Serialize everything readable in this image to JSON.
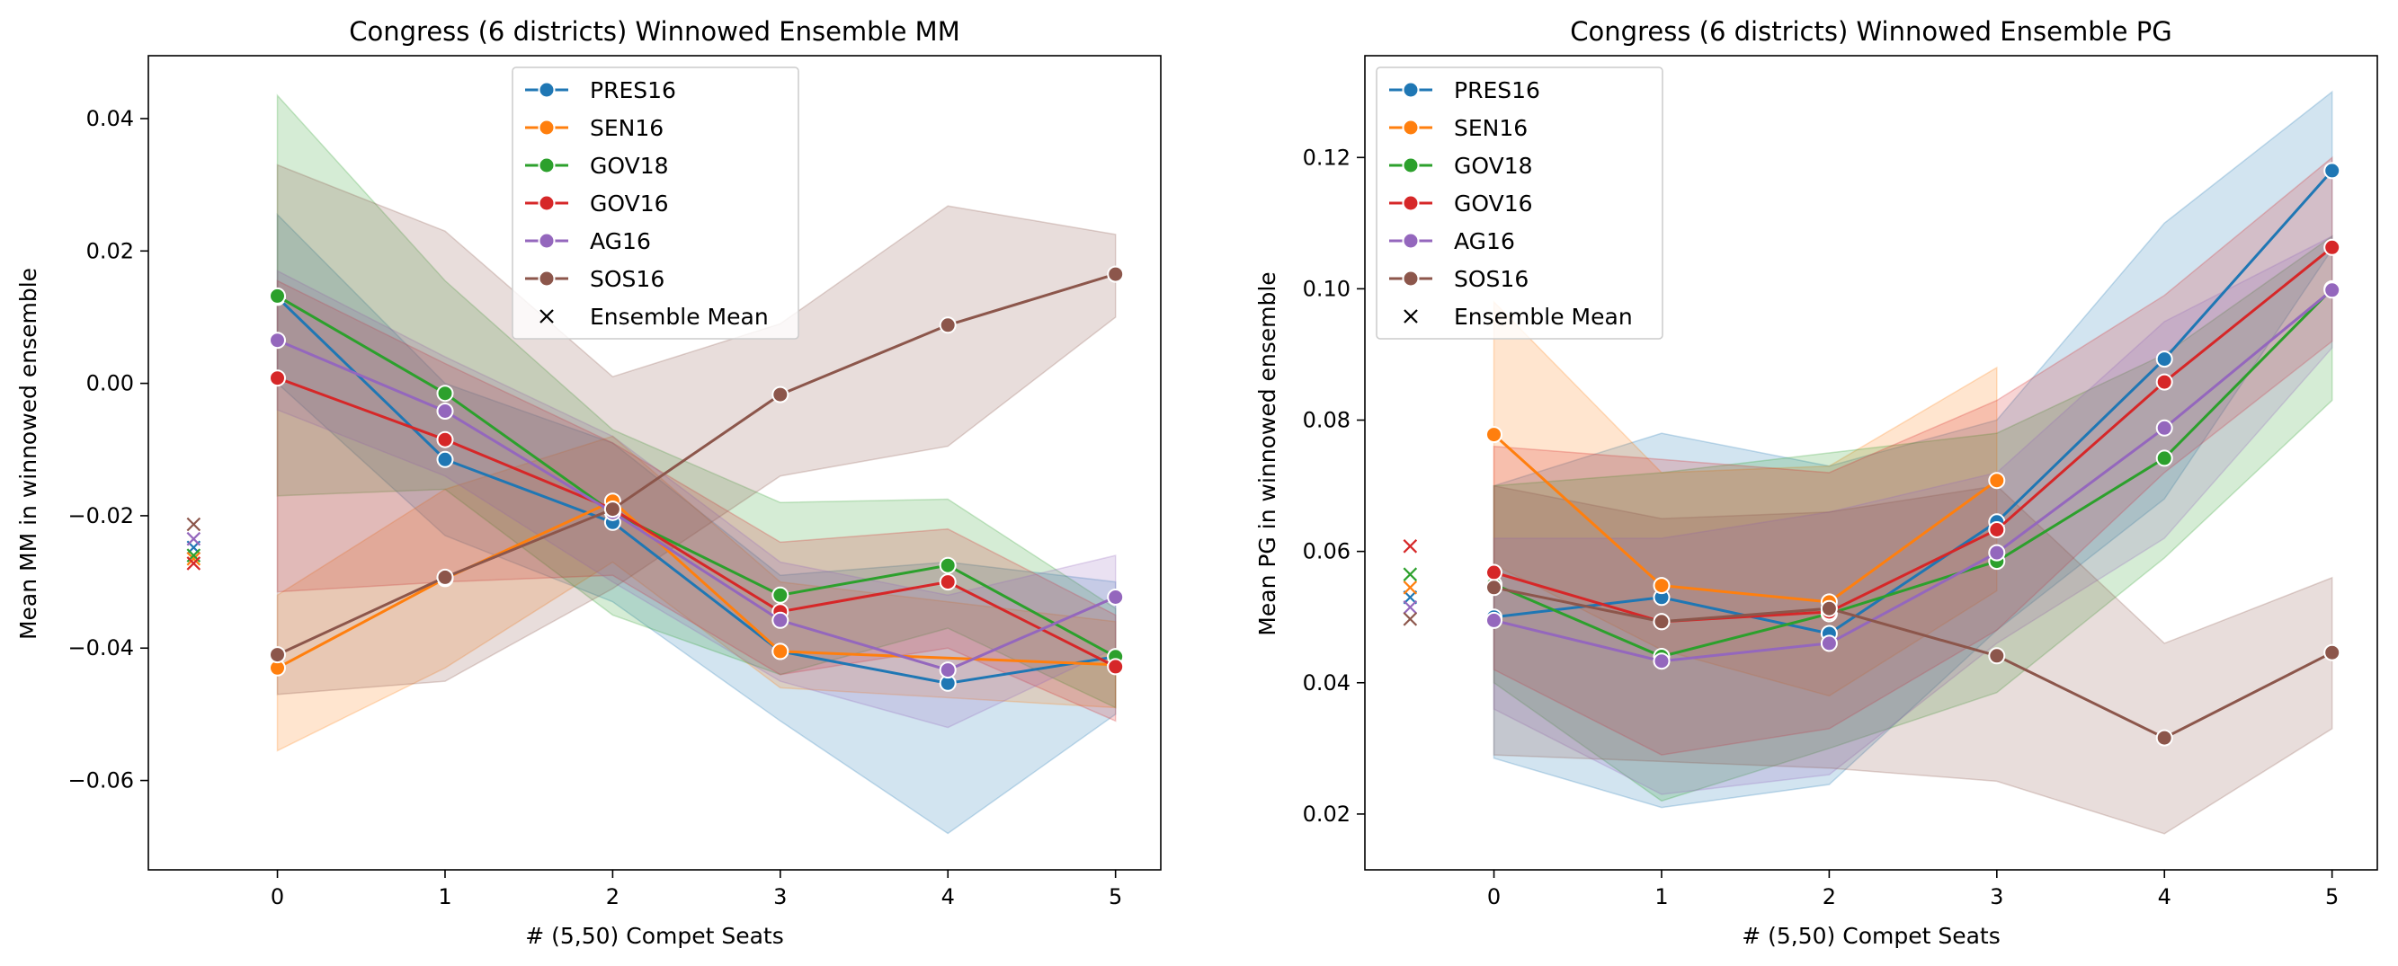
{
  "chart_data": [
    {
      "type": "line",
      "title": "Congress (6 districts) Winnowed Ensemble MM",
      "xlabel": "# (5,50) Compet Seats",
      "ylabel": "Mean MM in winnowed ensemble",
      "xlim": [
        -0.77,
        5.27
      ],
      "ylim": [
        -0.0735,
        0.0495
      ],
      "x": [
        0,
        1,
        2,
        3,
        4,
        5
      ],
      "x_ticks": [
        "0",
        "1",
        "2",
        "3",
        "4",
        "5"
      ],
      "y_ticks": [
        0.04,
        0.02,
        0.0,
        -0.02,
        -0.04,
        -0.06
      ],
      "y_tick_labels": [
        "0.04",
        "0.02",
        "0.00",
        "−0.02",
        "−0.04",
        "−0.06"
      ],
      "grid": false,
      "legend_position": "upper center",
      "series": [
        {
          "name": "PRES16",
          "color": "#1f77b4",
          "values": [
            0.013,
            -0.0115,
            -0.021,
            -0.0405,
            -0.0453,
            -0.0413
          ],
          "band_upper": [
            0.0255,
            0.0,
            -0.009,
            -0.029,
            -0.027,
            -0.03
          ],
          "band_lower": [
            0.0,
            -0.023,
            -0.033,
            -0.051,
            -0.068,
            -0.05
          ],
          "ensemble_mean": -0.0248
        },
        {
          "name": "SEN16",
          "color": "#ff7f0e",
          "values": [
            -0.043,
            -0.0295,
            -0.0178,
            -0.0405,
            null,
            -0.0425
          ],
          "band_upper": [
            -0.032,
            -0.016,
            -0.008,
            -0.03,
            null,
            -0.036
          ],
          "band_lower": [
            -0.0555,
            -0.043,
            -0.027,
            -0.046,
            null,
            -0.049
          ],
          "ensemble_mean": -0.0265
        },
        {
          "name": "GOV18",
          "color": "#2ca02c",
          "values": [
            0.0132,
            -0.0015,
            -0.0195,
            -0.032,
            -0.0275,
            -0.0413
          ],
          "band_upper": [
            0.0435,
            0.0155,
            -0.007,
            -0.018,
            -0.0175,
            -0.034
          ],
          "band_lower": [
            -0.017,
            -0.016,
            -0.035,
            -0.044,
            -0.037,
            -0.049
          ],
          "ensemble_mean": -0.026
        },
        {
          "name": "GOV16",
          "color": "#d62728",
          "values": [
            0.0008,
            -0.0085,
            -0.019,
            -0.0345,
            -0.03,
            -0.0428
          ],
          "band_upper": [
            0.0155,
            0.003,
            -0.009,
            -0.024,
            -0.022,
            -0.035
          ],
          "band_lower": [
            -0.0315,
            -0.03,
            -0.029,
            -0.044,
            -0.04,
            -0.051
          ],
          "ensemble_mean": -0.0272
        },
        {
          "name": "AG16",
          "color": "#9467bd",
          "values": [
            0.0065,
            -0.0042,
            -0.0195,
            -0.0358,
            -0.0433,
            -0.0323
          ],
          "band_upper": [
            0.017,
            0.004,
            -0.008,
            -0.027,
            -0.032,
            -0.026
          ],
          "band_lower": [
            -0.004,
            -0.014,
            -0.03,
            -0.045,
            -0.052,
            -0.04
          ],
          "ensemble_mean": -0.0235
        },
        {
          "name": "SOS16",
          "color": "#8c564b",
          "values": [
            -0.041,
            -0.0293,
            -0.019,
            -0.0017,
            0.0088,
            0.0165
          ],
          "band_upper": [
            0.033,
            0.023,
            0.001,
            0.009,
            0.0268,
            0.0225
          ],
          "band_lower": [
            -0.047,
            -0.045,
            -0.031,
            -0.014,
            -0.0095,
            0.01
          ],
          "ensemble_mean": -0.0213
        }
      ],
      "legend_extra": "Ensemble Mean"
    },
    {
      "type": "line",
      "title": "Congress (6 districts) Winnowed Ensemble PG",
      "xlabel": "# (5,50) Compet Seats",
      "ylabel": "Mean PG in winnowed ensemble",
      "xlim": [
        -0.77,
        5.27
      ],
      "ylim": [
        0.0115,
        0.1355
      ],
      "x": [
        0,
        1,
        2,
        3,
        4,
        5
      ],
      "x_ticks": [
        "0",
        "1",
        "2",
        "3",
        "4",
        "5"
      ],
      "y_ticks": [
        0.02,
        0.04,
        0.06,
        0.08,
        0.1,
        0.12
      ],
      "y_tick_labels": [
        "0.02",
        "0.04",
        "0.06",
        "0.08",
        "0.10",
        "0.12"
      ],
      "grid": false,
      "legend_position": "upper left",
      "series": [
        {
          "name": "PRES16",
          "color": "#1f77b4",
          "values": [
            0.05,
            0.053,
            0.0475,
            0.0645,
            0.0893,
            0.118
          ],
          "band_upper": [
            0.07,
            0.078,
            0.073,
            0.08,
            0.11,
            0.13
          ],
          "band_lower": [
            0.0285,
            0.021,
            0.0245,
            0.048,
            0.068,
            0.106
          ],
          "ensemble_mean": 0.053
        },
        {
          "name": "SEN16",
          "color": "#ff7f0e",
          "values": [
            0.0778,
            0.0548,
            0.0523,
            0.0708,
            null,
            null
          ],
          "band_upper": [
            0.098,
            0.072,
            0.073,
            0.088,
            null,
            null
          ],
          "band_lower": [
            0.058,
            0.045,
            0.038,
            0.054,
            null,
            null
          ],
          "ensemble_mean": 0.0545
        },
        {
          "name": "GOV18",
          "color": "#2ca02c",
          "values": [
            0.055,
            0.044,
            0.0505,
            0.0585,
            0.0742,
            0.1
          ],
          "band_upper": [
            0.07,
            0.072,
            0.075,
            0.078,
            0.09,
            0.108
          ],
          "band_lower": [
            0.04,
            0.022,
            0.03,
            0.0385,
            0.059,
            0.083
          ],
          "ensemble_mean": 0.0565
        },
        {
          "name": "GOV16",
          "color": "#d62728",
          "values": [
            0.0568,
            0.0493,
            0.0508,
            0.0633,
            0.0858,
            0.1063
          ],
          "band_upper": [
            0.076,
            0.074,
            0.072,
            0.083,
            0.099,
            0.12
          ],
          "band_lower": [
            0.042,
            0.029,
            0.033,
            0.048,
            0.072,
            0.092
          ],
          "ensemble_mean": 0.0608
        },
        {
          "name": "AG16",
          "color": "#9467bd",
          "values": [
            0.0495,
            0.0433,
            0.046,
            0.0598,
            0.0788,
            0.0998
          ],
          "band_upper": [
            0.062,
            0.062,
            0.066,
            0.072,
            0.095,
            0.108
          ],
          "band_lower": [
            0.036,
            0.023,
            0.026,
            0.046,
            0.062,
            0.091
          ],
          "ensemble_mean": 0.0515
        },
        {
          "name": "SOS16",
          "color": "#8c564b",
          "values": [
            0.0545,
            0.0493,
            0.0513,
            0.0441,
            0.0316,
            0.0446
          ],
          "band_upper": [
            0.07,
            0.065,
            0.066,
            0.07,
            0.046,
            0.056
          ],
          "band_lower": [
            0.029,
            0.028,
            0.027,
            0.025,
            0.017,
            0.033
          ],
          "ensemble_mean": 0.0497
        }
      ],
      "legend_extra": "Ensemble Mean"
    }
  ]
}
